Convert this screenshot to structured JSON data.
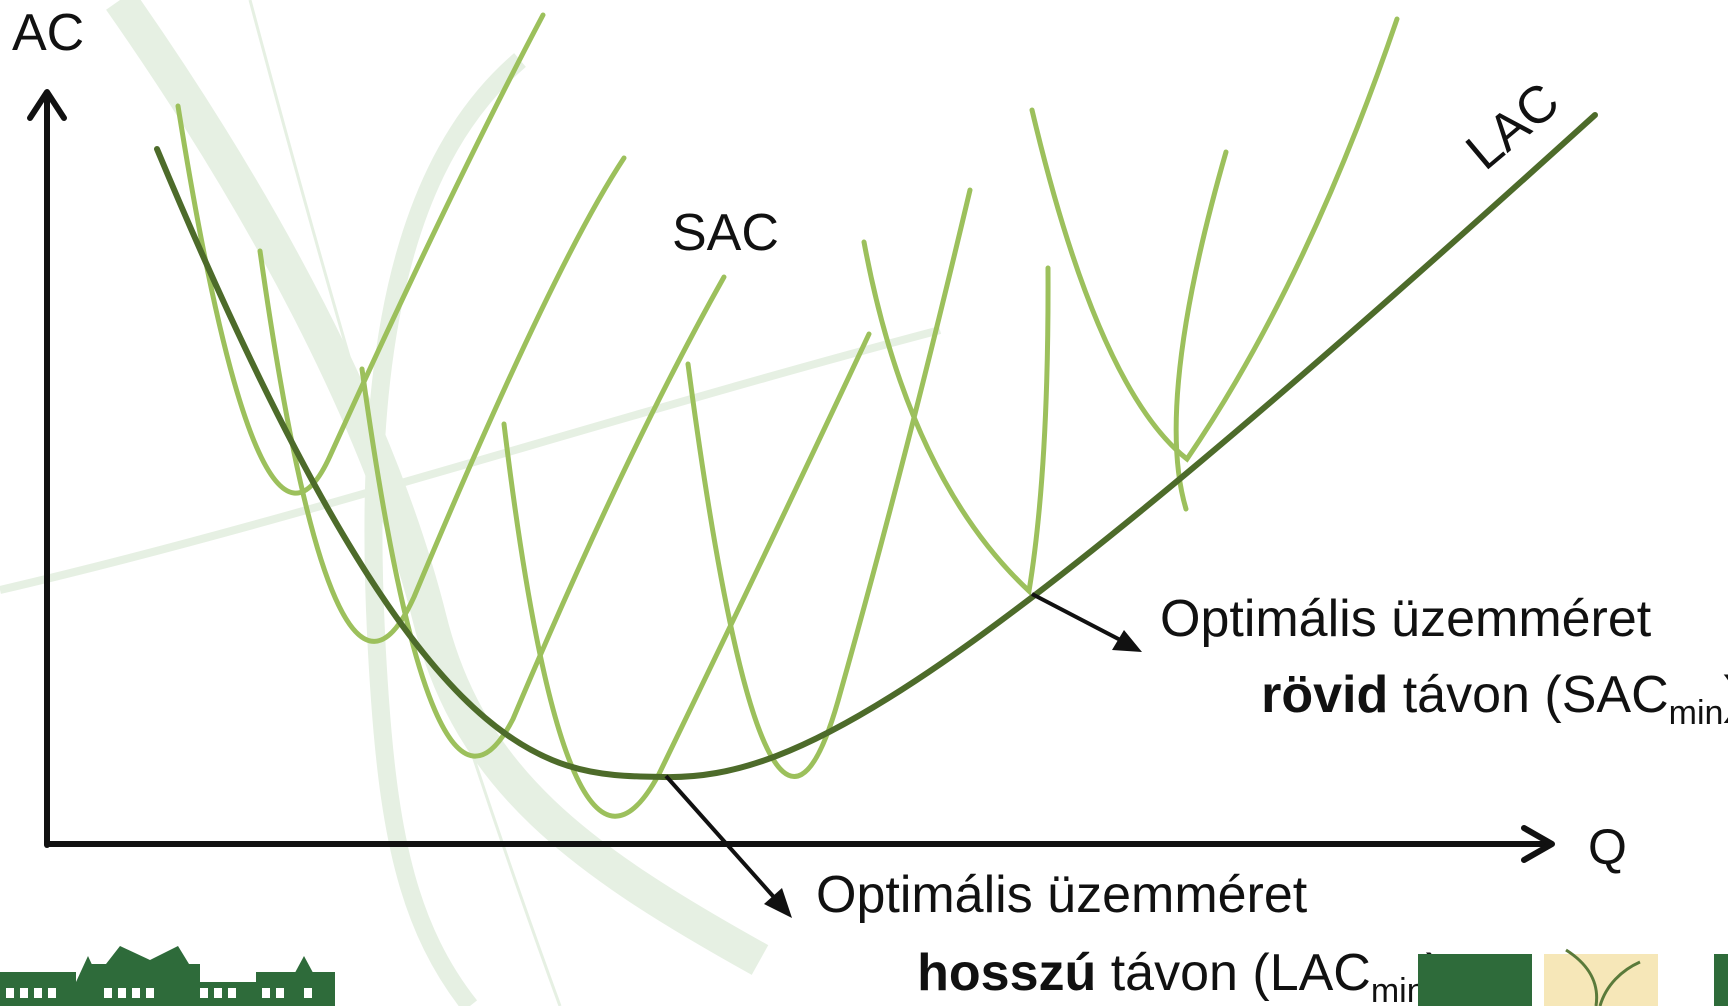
{
  "axes": {
    "y_label": "AC",
    "x_label": "Q"
  },
  "curves": {
    "sac_label": "SAC",
    "lac_label": "LAC"
  },
  "annotations": {
    "short_run": {
      "line1": "Optimális üzemméret",
      "bold": "rövid",
      "rest": " távon (SAC",
      "sub": "min",
      "close": ")"
    },
    "long_run": {
      "line1": "Optimális üzemméret",
      "bold": "hosszú",
      "rest": " távon (LAC",
      "sub": "min",
      "close": ")"
    }
  },
  "colors": {
    "lac": "#4d6b2a",
    "sac": "#9cc05c",
    "axis": "#111111",
    "watermark": "#e6f0e3",
    "logo_green": "#2e6b3a",
    "logo_cream": "#f6e7b8"
  },
  "icons": [
    "university-building-logo",
    "faculty-logo"
  ]
}
